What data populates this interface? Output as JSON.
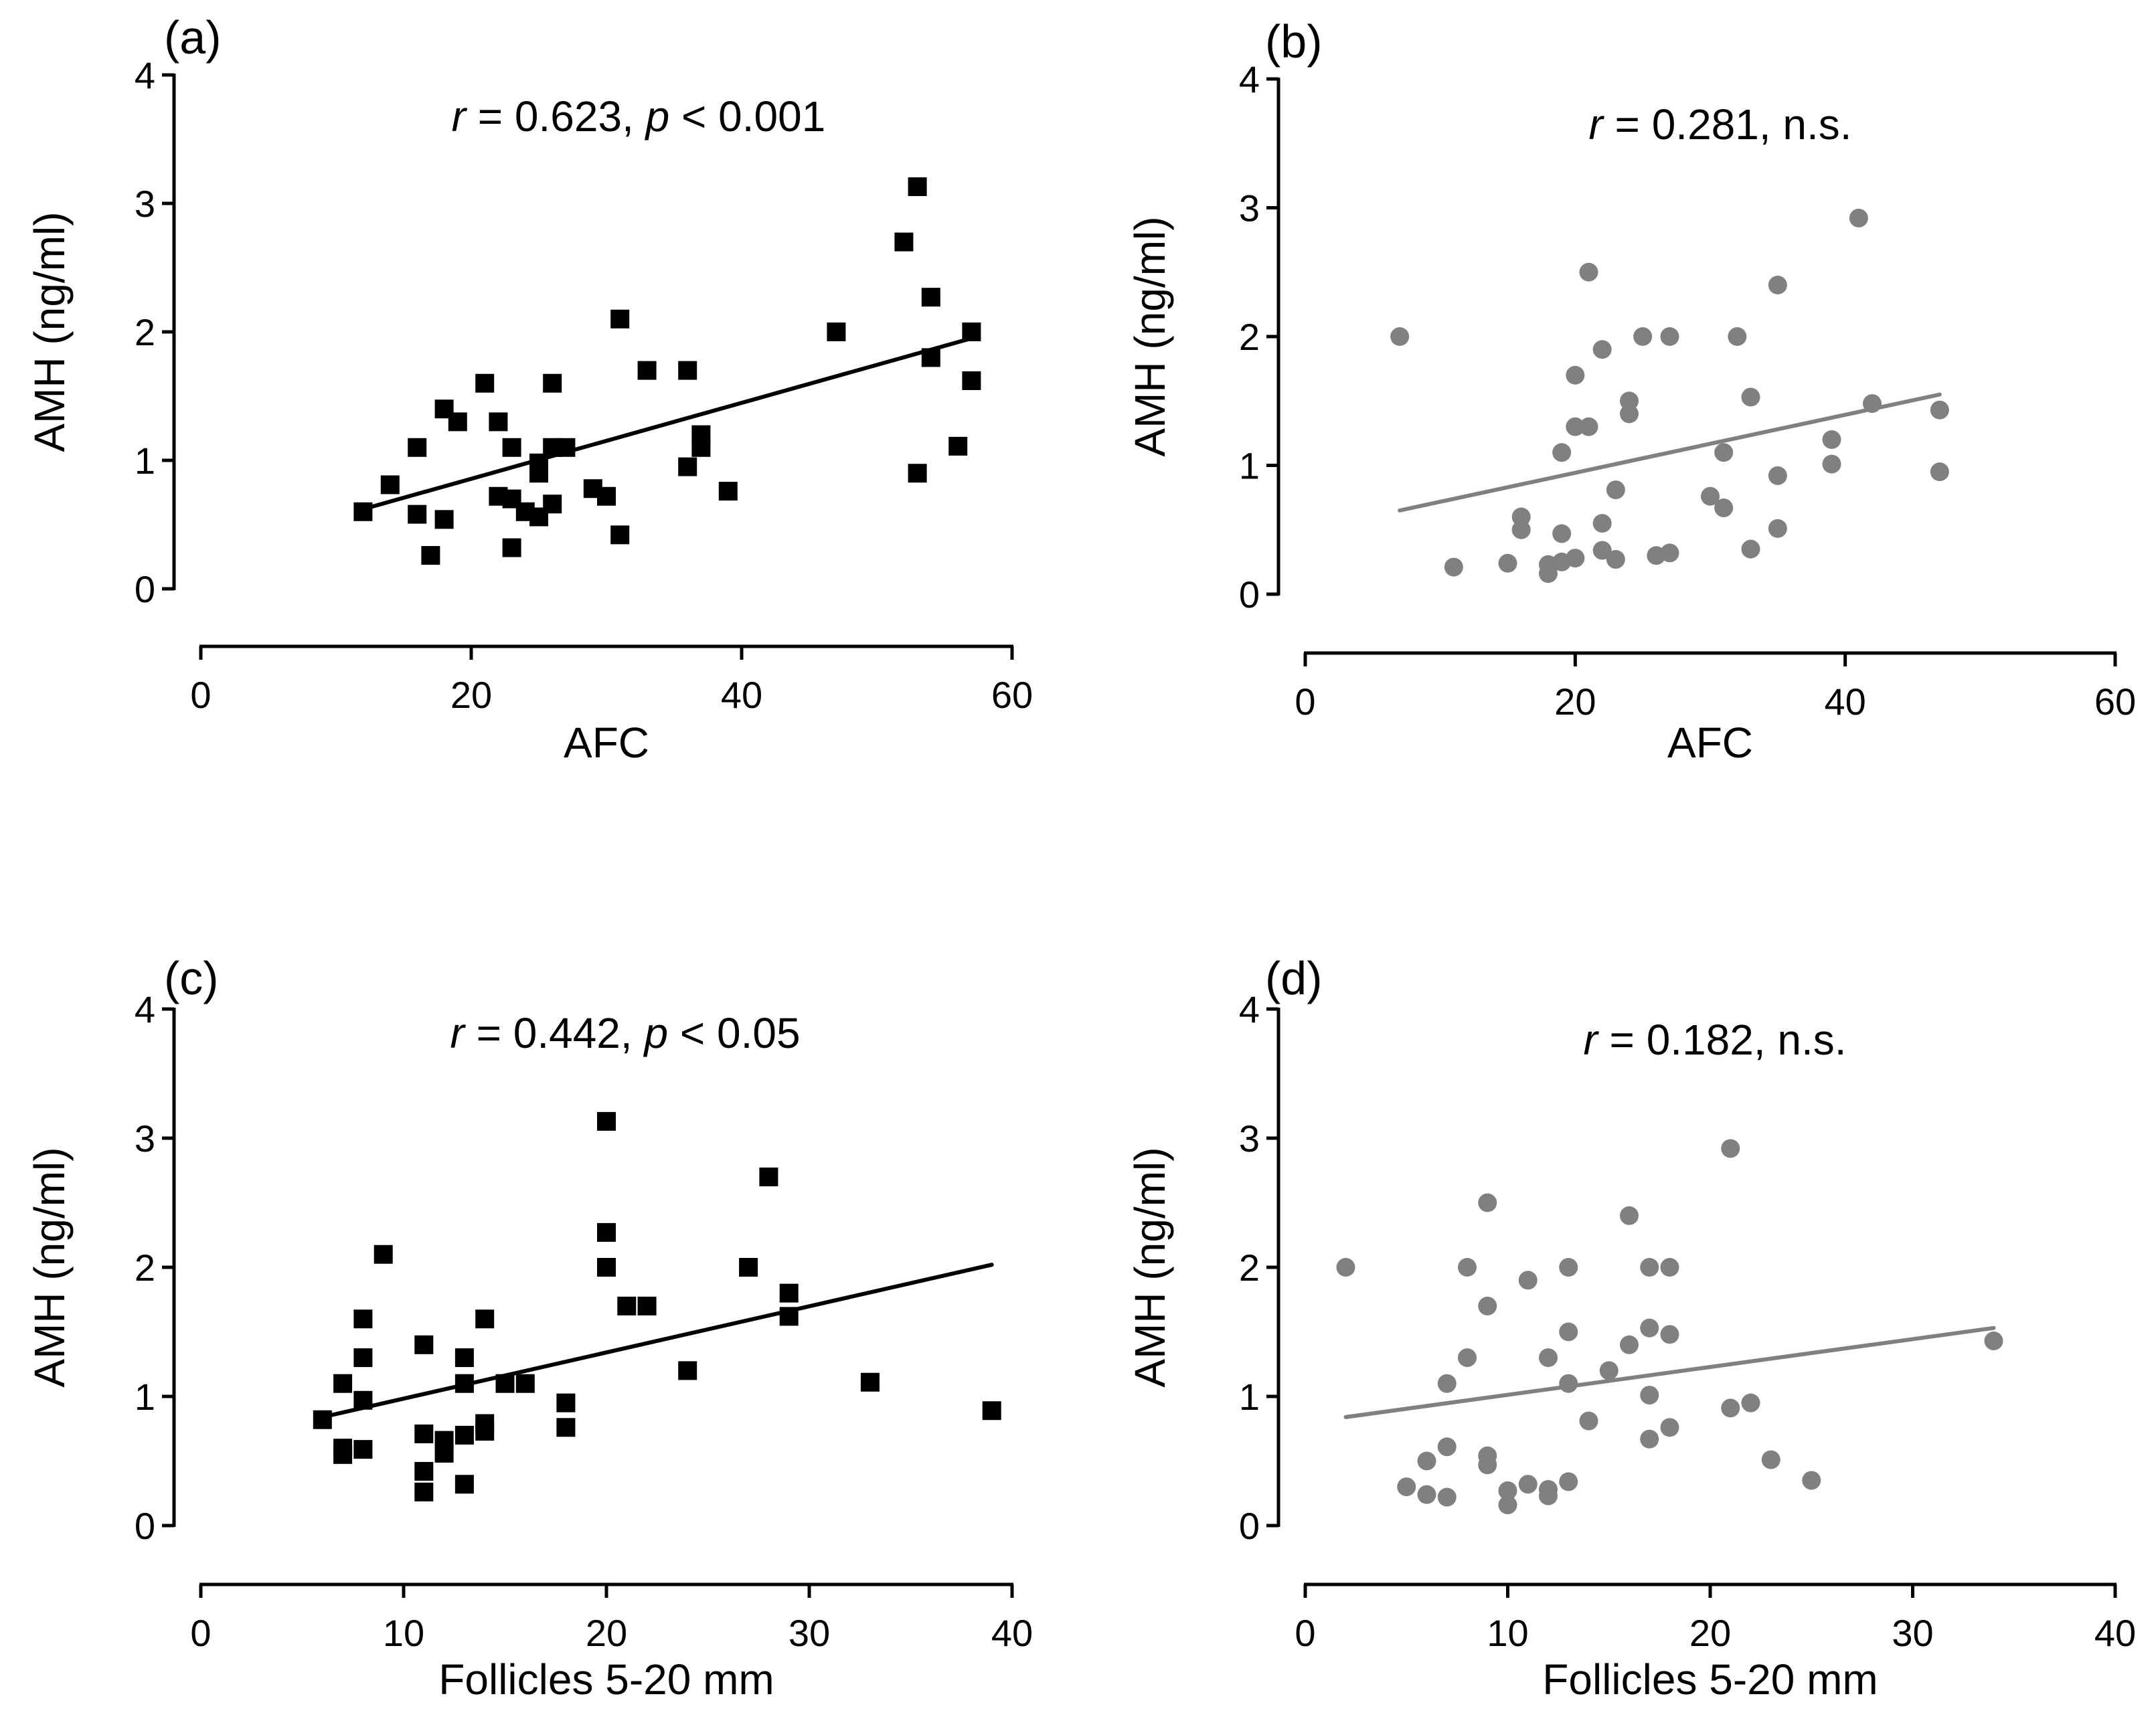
{
  "colors": {
    "black": "#000000",
    "gray": "#808080"
  },
  "chart_data": [
    {
      "type": "scatter",
      "panel_label": "(a)",
      "stat_r_symbol": "r",
      "stat_r_rest": " = 0.623, ",
      "stat_p_symbol": "p",
      "stat_p_rest": " < 0.001",
      "xlabel": "AFC",
      "ylabel": "AMH (ng/ml)",
      "xlim": [
        0,
        60
      ],
      "ylim": [
        0,
        4
      ],
      "xticks": [
        "0",
        "20",
        "40",
        "60"
      ],
      "yticks": [
        "0",
        "1",
        "2",
        "3",
        "4"
      ],
      "marker": "square",
      "color": "#000000",
      "x": [
        12,
        14,
        16,
        16,
        17,
        18,
        18,
        19,
        21,
        22,
        22,
        23,
        23,
        23,
        24,
        25,
        25,
        25,
        26,
        26,
        26,
        27,
        29,
        30,
        31,
        31,
        33,
        36,
        36,
        37,
        37,
        39,
        47,
        52,
        53,
        53,
        54,
        54,
        56,
        57,
        57
      ],
      "y": [
        0.6,
        0.81,
        1.1,
        0.58,
        0.26,
        1.4,
        0.54,
        1.3,
        1.6,
        1.3,
        0.72,
        1.1,
        0.7,
        0.32,
        0.6,
        0.98,
        0.9,
        0.56,
        1.6,
        1.1,
        0.66,
        1.1,
        0.78,
        0.72,
        2.1,
        0.42,
        1.7,
        1.7,
        0.95,
        1.2,
        1.1,
        0.76,
        2.0,
        2.7,
        3.13,
        0.9,
        2.27,
        1.8,
        1.11,
        2.0,
        1.62
      ],
      "trendline": {
        "x": [
          12,
          57
        ],
        "y": [
          0.62,
          1.95
        ]
      }
    },
    {
      "type": "scatter",
      "panel_label": "(b)",
      "stat_r_symbol": "r",
      "stat_r_rest": " = 0.281, n.s.",
      "stat_p_symbol": "",
      "stat_p_rest": "",
      "xlabel": "AFC",
      "ylabel": "AMH (ng/ml)",
      "xlim": [
        0,
        60
      ],
      "ylim": [
        0,
        4
      ],
      "xticks": [
        "0",
        "20",
        "40",
        "60"
      ],
      "yticks": [
        "0",
        "1",
        "2",
        "3",
        "4"
      ],
      "marker": "circle",
      "color": "#808080",
      "x": [
        7,
        11,
        15,
        16,
        16,
        18,
        18,
        19,
        19,
        19,
        20,
        20,
        20,
        21,
        21,
        22,
        22,
        22,
        23,
        23,
        24,
        24,
        25,
        26,
        27,
        27,
        30,
        31,
        31,
        32,
        33,
        33,
        35,
        35,
        35,
        39,
        39,
        41,
        42,
        47,
        47
      ],
      "y": [
        2.0,
        0.21,
        0.24,
        0.6,
        0.5,
        0.16,
        0.23,
        1.1,
        0.25,
        0.47,
        1.7,
        1.3,
        0.28,
        2.5,
        1.3,
        1.9,
        0.55,
        0.34,
        0.27,
        0.81,
        1.5,
        1.4,
        2.0,
        0.3,
        2.0,
        0.32,
        0.76,
        1.1,
        0.67,
        2.0,
        1.53,
        0.35,
        2.4,
        0.92,
        0.51,
        1.2,
        1.01,
        2.92,
        1.48,
        1.43,
        0.95
      ],
      "trendline": {
        "x": [
          7,
          47
        ],
        "y": [
          0.65,
          1.55
        ]
      }
    },
    {
      "type": "scatter",
      "panel_label": "(c)",
      "stat_r_symbol": "r",
      "stat_r_rest": " = 0.442, ",
      "stat_p_symbol": "p",
      "stat_p_rest": " < 0.05",
      "xlabel": "Follicles 5-20 mm",
      "ylabel": "AMH (ng/ml)",
      "xlim": [
        0,
        40
      ],
      "ylim": [
        0,
        4
      ],
      "xticks": [
        "0",
        "10",
        "20",
        "30",
        "40"
      ],
      "yticks": [
        "0",
        "1",
        "2",
        "3",
        "4"
      ],
      "marker": "square",
      "color": "#000000",
      "x": [
        6,
        7,
        7,
        7,
        8,
        8,
        8,
        8,
        9,
        11,
        11,
        11,
        11,
        12,
        12,
        13,
        13,
        13,
        13,
        14,
        14,
        14,
        15,
        16,
        18,
        18,
        20,
        20,
        20,
        21,
        22,
        24,
        27,
        28,
        29,
        29,
        33,
        39
      ],
      "y": [
        0.82,
        1.1,
        0.6,
        0.55,
        1.6,
        1.3,
        0.97,
        0.59,
        2.1,
        1.4,
        0.71,
        0.42,
        0.26,
        0.66,
        0.56,
        1.3,
        1.1,
        0.7,
        0.32,
        1.6,
        0.79,
        0.73,
        1.1,
        1.1,
        0.95,
        0.76,
        3.13,
        2.27,
        2.0,
        1.7,
        1.7,
        1.2,
        2.0,
        2.7,
        1.8,
        1.62,
        1.11,
        0.89
      ],
      "trendline": {
        "x": [
          6,
          39
        ],
        "y": [
          0.84,
          2.02
        ]
      }
    },
    {
      "type": "scatter",
      "panel_label": "(d)",
      "stat_r_symbol": "r",
      "stat_r_rest": " = 0.182, n.s.",
      "stat_p_symbol": "",
      "stat_p_rest": "",
      "xlabel": "Follicles 5-20 mm",
      "ylabel": "AMH (ng/ml)",
      "xlim": [
        0,
        40
      ],
      "ylim": [
        0,
        4
      ],
      "xticks": [
        "0",
        "10",
        "20",
        "30",
        "40"
      ],
      "yticks": [
        "0",
        "1",
        "2",
        "3",
        "4"
      ],
      "marker": "circle",
      "color": "#808080",
      "x": [
        2,
        5,
        6,
        6,
        7,
        7,
        7,
        8,
        8,
        9,
        9,
        9,
        9,
        10,
        10,
        11,
        11,
        12,
        12,
        12,
        13,
        13,
        13,
        13,
        14,
        15,
        16,
        16,
        17,
        17,
        17,
        17,
        18,
        18,
        18,
        21,
        21,
        22,
        23,
        25,
        34
      ],
      "y": [
        2.0,
        0.3,
        0.5,
        0.24,
        1.1,
        0.61,
        0.22,
        2.0,
        1.3,
        2.5,
        1.7,
        0.54,
        0.47,
        0.27,
        0.16,
        1.9,
        0.32,
        1.3,
        0.28,
        0.23,
        2.0,
        1.5,
        1.1,
        0.34,
        0.81,
        1.2,
        2.4,
        1.4,
        2.0,
        1.53,
        1.01,
        0.67,
        2.0,
        1.48,
        0.76,
        2.92,
        0.91,
        0.95,
        0.51,
        0.35,
        1.43
      ],
      "trendline": {
        "x": [
          2,
          34
        ],
        "y": [
          0.84,
          1.53
        ]
      }
    }
  ]
}
